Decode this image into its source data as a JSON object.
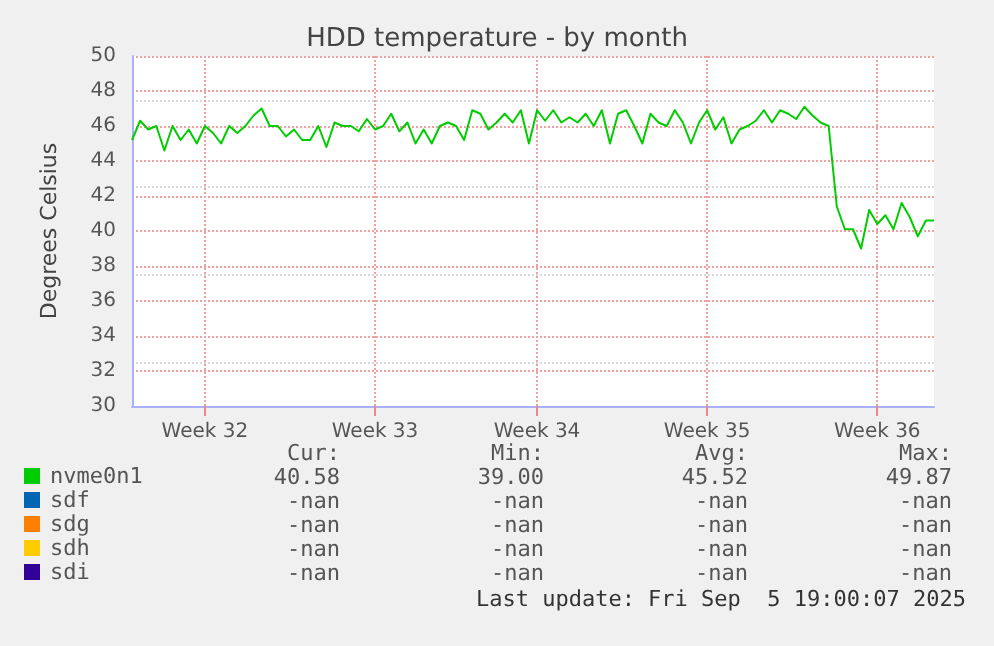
{
  "chart_data": {
    "type": "line",
    "title": "HDD temperature - by month",
    "ylabel": "Degrees Celsius",
    "categories": [
      null,
      null,
      null,
      null,
      null,
      null,
      null,
      null,
      null,
      "Week 32",
      null,
      null,
      null,
      null,
      null,
      null,
      null,
      null,
      null,
      null,
      null,
      null,
      null,
      null,
      null,
      null,
      null,
      null,
      null,
      null,
      "Week 33",
      null,
      null,
      null,
      null,
      null,
      null,
      null,
      null,
      null,
      null,
      null,
      null,
      null,
      null,
      null,
      null,
      null,
      null,
      null,
      "Week 34",
      null,
      null,
      null,
      null,
      null,
      null,
      null,
      null,
      null,
      null,
      null,
      null,
      null,
      null,
      null,
      null,
      null,
      null,
      null,
      null,
      "Week 35",
      null,
      null,
      null,
      null,
      null,
      null,
      null,
      null,
      null,
      null,
      null,
      null,
      null,
      null,
      null,
      null,
      null,
      null,
      null,
      null,
      "Week 36",
      null,
      null,
      null,
      null,
      null,
      null,
      null
    ],
    "ylim": [
      30,
      50
    ],
    "yticks": [
      30,
      32,
      34,
      36,
      38,
      40,
      42,
      44,
      46,
      48,
      50
    ],
    "grid": true,
    "legend": "bottom left",
    "marker": "none",
    "line_style": "solid",
    "series": [
      {
        "name": "nvme0n1",
        "color": "#00cc00",
        "values": [
          45.2,
          46.3,
          45.8,
          46.0,
          44.6,
          46.0,
          45.2,
          45.8,
          45.0,
          46.0,
          45.6,
          45.0,
          46.0,
          45.6,
          46.0,
          46.6,
          47.0,
          46.0,
          46.0,
          45.4,
          45.8,
          45.2,
          45.2,
          46.0,
          44.8,
          46.2,
          46.0,
          46.0,
          45.7,
          46.4,
          45.8,
          46.0,
          46.7,
          45.7,
          46.2,
          45.0,
          45.8,
          45.0,
          46.0,
          46.2,
          46.0,
          45.2,
          46.9,
          46.7,
          45.8,
          46.2,
          46.7,
          46.2,
          46.9,
          45.0,
          46.9,
          46.3,
          46.9,
          46.2,
          46.5,
          46.2,
          46.7,
          46.0,
          46.9,
          45.0,
          46.7,
          46.9,
          46.0,
          45.0,
          46.7,
          46.2,
          46.0,
          46.9,
          46.2,
          45.0,
          46.2,
          46.9,
          45.8,
          46.5,
          45.0,
          45.8,
          46.0,
          46.3,
          46.9,
          46.2,
          46.9,
          46.7,
          46.4,
          47.1,
          46.6,
          46.2,
          46.0,
          41.4,
          40.1,
          40.1,
          39.0,
          41.2,
          40.4,
          40.9,
          40.1,
          41.6,
          40.8,
          39.7,
          40.6,
          40.6
        ]
      },
      {
        "name": "sdf",
        "color": "#0066b3",
        "values": [
          null,
          null,
          null,
          null,
          null,
          null,
          null,
          null,
          null,
          null,
          null,
          null,
          null,
          null,
          null,
          null,
          null,
          null,
          null,
          null,
          null,
          null,
          null,
          null,
          null,
          null,
          null,
          null,
          null,
          null,
          null,
          null,
          null,
          null,
          null,
          null,
          null,
          null,
          null,
          null,
          null,
          null,
          null,
          null,
          null,
          null,
          null,
          null,
          null,
          null,
          null,
          null,
          null,
          null,
          null,
          null,
          null,
          null,
          null,
          null,
          null,
          null,
          null,
          null,
          null,
          null,
          null,
          null,
          null,
          null,
          null,
          null,
          null,
          null,
          null,
          null,
          null,
          null,
          null,
          null,
          null,
          null,
          null,
          null,
          null,
          null,
          null,
          null,
          null,
          null,
          null,
          null,
          null,
          null,
          null,
          null,
          null,
          null,
          null,
          null
        ]
      },
      {
        "name": "sdg",
        "color": "#ff8000",
        "values": [
          null,
          null,
          null,
          null,
          null,
          null,
          null,
          null,
          null,
          null,
          null,
          null,
          null,
          null,
          null,
          null,
          null,
          null,
          null,
          null,
          null,
          null,
          null,
          null,
          null,
          null,
          null,
          null,
          null,
          null,
          null,
          null,
          null,
          null,
          null,
          null,
          null,
          null,
          null,
          null,
          null,
          null,
          null,
          null,
          null,
          null,
          null,
          null,
          null,
          null,
          null,
          null,
          null,
          null,
          null,
          null,
          null,
          null,
          null,
          null,
          null,
          null,
          null,
          null,
          null,
          null,
          null,
          null,
          null,
          null,
          null,
          null,
          null,
          null,
          null,
          null,
          null,
          null,
          null,
          null,
          null,
          null,
          null,
          null,
          null,
          null,
          null,
          null,
          null,
          null,
          null,
          null,
          null,
          null,
          null,
          null,
          null,
          null,
          null,
          null
        ]
      },
      {
        "name": "sdh",
        "color": "#ffcc00",
        "values": [
          null,
          null,
          null,
          null,
          null,
          null,
          null,
          null,
          null,
          null,
          null,
          null,
          null,
          null,
          null,
          null,
          null,
          null,
          null,
          null,
          null,
          null,
          null,
          null,
          null,
          null,
          null,
          null,
          null,
          null,
          null,
          null,
          null,
          null,
          null,
          null,
          null,
          null,
          null,
          null,
          null,
          null,
          null,
          null,
          null,
          null,
          null,
          null,
          null,
          null,
          null,
          null,
          null,
          null,
          null,
          null,
          null,
          null,
          null,
          null,
          null,
          null,
          null,
          null,
          null,
          null,
          null,
          null,
          null,
          null,
          null,
          null,
          null,
          null,
          null,
          null,
          null,
          null,
          null,
          null,
          null,
          null,
          null,
          null,
          null,
          null,
          null,
          null,
          null,
          null,
          null,
          null,
          null,
          null,
          null,
          null,
          null,
          null,
          null,
          null
        ]
      },
      {
        "name": "sdi",
        "color": "#330099",
        "values": [
          null,
          null,
          null,
          null,
          null,
          null,
          null,
          null,
          null,
          null,
          null,
          null,
          null,
          null,
          null,
          null,
          null,
          null,
          null,
          null,
          null,
          null,
          null,
          null,
          null,
          null,
          null,
          null,
          null,
          null,
          null,
          null,
          null,
          null,
          null,
          null,
          null,
          null,
          null,
          null,
          null,
          null,
          null,
          null,
          null,
          null,
          null,
          null,
          null,
          null,
          null,
          null,
          null,
          null,
          null,
          null,
          null,
          null,
          null,
          null,
          null,
          null,
          null,
          null,
          null,
          null,
          null,
          null,
          null,
          null,
          null,
          null,
          null,
          null,
          null,
          null,
          null,
          null,
          null,
          null,
          null,
          null,
          null,
          null,
          null,
          null,
          null,
          null,
          null,
          null,
          null,
          null,
          null,
          null,
          null,
          null,
          null,
          null,
          null,
          null
        ]
      }
    ],
    "annotations": [
      "Cur:",
      "Min:",
      "Avg:",
      "Max:",
      "40.58",
      "39.00",
      "45.52",
      "49.87",
      "-nan",
      "-nan",
      "-nan",
      "-nan",
      "-nan",
      "-nan",
      "-nan",
      "-nan",
      "-nan",
      "-nan",
      "-nan",
      "-nan",
      "-nan",
      "-nan",
      "-nan",
      "-nan",
      "Last update: Fri Sep  5 19:00:07 2025"
    ]
  }
}
